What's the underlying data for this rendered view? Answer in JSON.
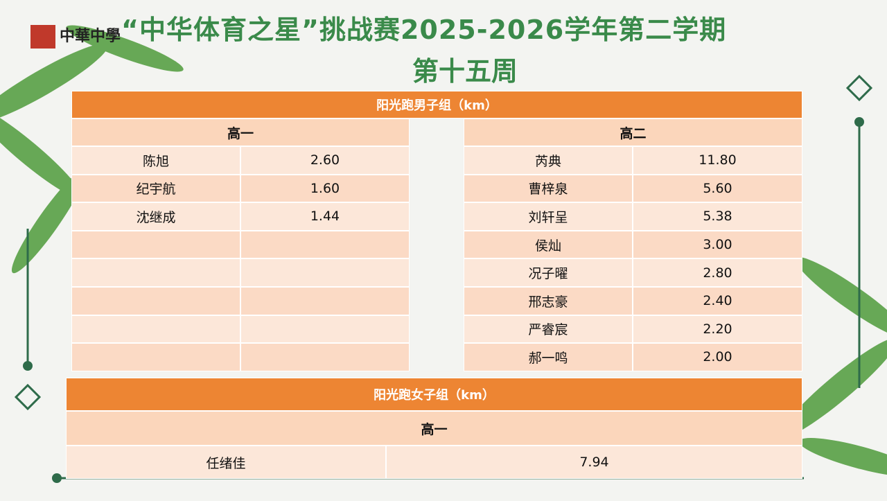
{
  "logo": {
    "text": "中華中學"
  },
  "header": {
    "title": "“中华体育之星”挑战赛2025-2026学年第二学期",
    "subtitle": "第十五周"
  },
  "boys": {
    "title": "阳光跑男子组（km）",
    "groups": [
      {
        "grade": "高一",
        "rows": [
          [
            "陈旭",
            "2.60"
          ],
          [
            "纪宇航",
            "1.60"
          ],
          [
            "沈继成",
            "1.44"
          ]
        ]
      },
      {
        "grade": "高二",
        "rows": [
          [
            "芮典",
            "11.80"
          ],
          [
            "曹梓泉",
            "5.60"
          ],
          [
            "刘轩呈",
            "5.38"
          ],
          [
            "侯灿",
            "3.00"
          ],
          [
            "况子曜",
            "2.80"
          ],
          [
            "邢志豪",
            "2.40"
          ],
          [
            "严睿宸",
            "2.20"
          ],
          [
            "郝一鸣",
            "2.00"
          ]
        ]
      }
    ]
  },
  "girls": {
    "title": "阳光跑女子组（km）",
    "grade": "高一",
    "rows": [
      [
        "任绪佳",
        "7.94"
      ]
    ]
  }
}
